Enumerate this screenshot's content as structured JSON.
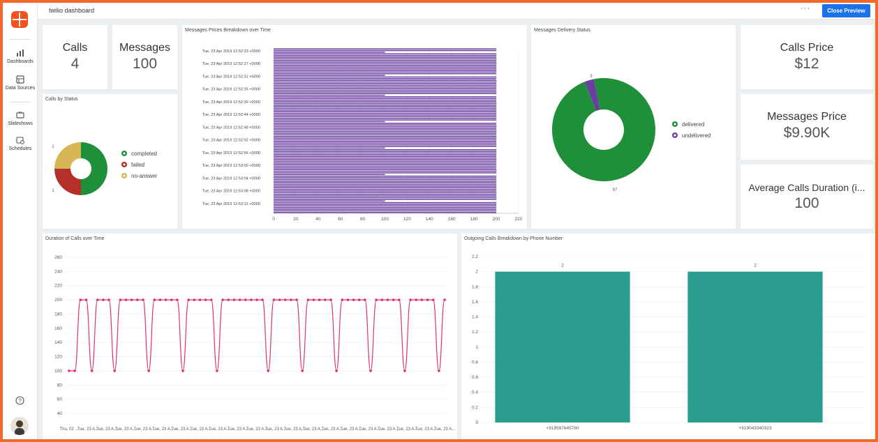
{
  "app": {
    "title": "twilio dashboard",
    "close_preview": "Close Preview",
    "more": "···"
  },
  "sidebar": {
    "items": [
      {
        "label": "Dashboards"
      },
      {
        "label": "Data Sources"
      },
      {
        "label": "Slideshows"
      },
      {
        "label": "Schedules"
      }
    ]
  },
  "kpis": {
    "calls": {
      "label": "Calls",
      "value": "4"
    },
    "messages": {
      "label": "Messages",
      "value": "100"
    },
    "calls_price": {
      "label": "Calls Price",
      "value": "$12"
    },
    "messages_price": {
      "label": "Messages Price",
      "value": "$9.90K"
    },
    "avg_duration": {
      "label": "Average Calls Duration (i...",
      "value": "100"
    }
  },
  "colors": {
    "purple": "#6a3fa0",
    "green": "#1f8f3a",
    "red": "#b5302a",
    "olive": "#d6b655",
    "teal": "#2a9d8f",
    "pink": "#e0336a",
    "blue": "#1a73e8",
    "orange": "#f46a2c"
  },
  "chart_data": [
    {
      "id": "calls_by_status",
      "type": "pie",
      "title": "Calls by Status",
      "labels": [
        "completed",
        "failed",
        "no-answer"
      ],
      "values": [
        2,
        1,
        1
      ],
      "value_labels": [
        "",
        "1",
        "1"
      ],
      "colors": [
        "#1f8f3a",
        "#b5302a",
        "#d6b655"
      ],
      "legend": "right"
    },
    {
      "id": "messages_prices",
      "type": "bar",
      "orientation": "horizontal",
      "title": "Messages Prices Breakdown over Time",
      "tick_labels": [
        "Tue, 23 Apr 2019 12:52:23 +0000",
        "Tue, 23 Apr 2019 12:52:27 +0000",
        "Tue, 23 Apr 2019 12:52:31 +0000",
        "Tue, 23 Apr 2019 12:52:35 +0000",
        "Tue, 23 Apr 2019 12:52:39 +0000",
        "Tue, 23 Apr 2019 12:52:44 +0000",
        "Tue, 23 Apr 2019 12:52:48 +0000",
        "Tue, 23 Apr 2019 12:52:52 +0000",
        "Tue, 23 Apr 2019 12:52:56 +0000",
        "Tue, 23 Apr 2019 12:53:00 +0000",
        "Tue, 23 Apr 2019 12:53:04 +0000",
        "Tue, 23 Apr 2019 12:53:08 +0000",
        "Tue, 23 Apr 2019 12:53:12 +0000"
      ],
      "values": [
        200,
        200,
        100,
        200,
        200,
        200,
        200,
        200,
        200,
        200,
        200,
        200,
        200,
        200,
        200,
        200,
        100,
        200,
        200,
        200,
        200,
        200,
        200,
        200,
        200,
        200,
        200,
        200,
        100,
        200,
        200,
        200,
        200,
        200,
        200,
        200,
        200,
        200,
        200,
        200,
        200,
        200,
        200,
        200,
        100,
        200,
        200,
        200,
        200,
        200,
        200,
        200,
        200,
        200,
        200,
        200,
        200,
        200,
        200,
        200,
        100,
        200,
        200,
        200,
        200,
        200,
        200,
        200,
        200,
        200,
        200,
        200,
        200,
        200,
        200,
        200,
        100,
        200,
        200,
        200,
        200,
        200,
        200,
        200,
        200,
        200,
        200,
        200,
        200,
        200,
        200,
        200,
        100,
        200,
        200,
        200,
        200,
        200,
        200,
        200
      ],
      "xticks": [
        0,
        20,
        40,
        60,
        80,
        100,
        120,
        140,
        160,
        180,
        200,
        220
      ],
      "xlim": [
        0,
        220
      ],
      "color": "#6a3fa0"
    },
    {
      "id": "delivery_status",
      "type": "pie",
      "title": "Messages Delivery Status",
      "labels": [
        "delivered",
        "undelivered"
      ],
      "values": [
        97,
        3
      ],
      "value_labels": [
        "97",
        "3"
      ],
      "colors": [
        "#1f8f3a",
        "#6a3fa0"
      ],
      "legend": "right"
    },
    {
      "id": "duration_over_time",
      "type": "line",
      "title": "Duration of Calls over Time",
      "yticks": [
        40,
        60,
        80,
        100,
        120,
        140,
        160,
        180,
        200,
        220,
        240,
        260
      ],
      "ylim": [
        40,
        260
      ],
      "x_tick_labels": [
        "Thu, 02 ...",
        "Tue, 23 A...",
        "Tue, 23 A...",
        "Tue, 23 A...",
        "Tue, 23 A...",
        "Tue, 23 A...",
        "Tue, 23 A...",
        "Tue, 23 A...",
        "Tue, 23 A...",
        "Tue, 23 A...",
        "Tue, 23 A...",
        "Tue, 23 A...",
        "Tue, 23 A...",
        "Tue, 23 A...",
        "Tue, 23 A...",
        "Tue, 23 A...",
        "Tue, 23 A...",
        "Tue, 23 A...",
        "Tue, 23 A...",
        "Tue, 23 A...",
        "Tue, 23 A..."
      ],
      "values": [
        100,
        100,
        200,
        200,
        100,
        200,
        200,
        200,
        100,
        200,
        200,
        200,
        200,
        200,
        100,
        200,
        200,
        200,
        200,
        200,
        100,
        200,
        200,
        200,
        200,
        200,
        100,
        200,
        200,
        200,
        200,
        200,
        200,
        200,
        200,
        100,
        200,
        200,
        200,
        200,
        200,
        100,
        200,
        200,
        200,
        200,
        200,
        100,
        200,
        200,
        200,
        200,
        200,
        100,
        200,
        200,
        200,
        200,
        200,
        100,
        200,
        200,
        200,
        200,
        200,
        100,
        200
      ],
      "color": "#e0336a"
    },
    {
      "id": "calls_by_phone",
      "type": "bar",
      "title": "Outgoing Calls Breakdown by Phone Number",
      "categories": [
        "+919597645780",
        "+919043340323"
      ],
      "values": [
        2,
        2
      ],
      "value_labels": [
        "2",
        "2"
      ],
      "yticks": [
        0,
        0.2,
        0.4,
        0.6,
        0.8,
        1,
        1.2,
        1.4,
        1.6,
        1.8,
        2,
        2.2
      ],
      "ylim": [
        0,
        2.2
      ],
      "color": "#2a9d8f"
    }
  ]
}
